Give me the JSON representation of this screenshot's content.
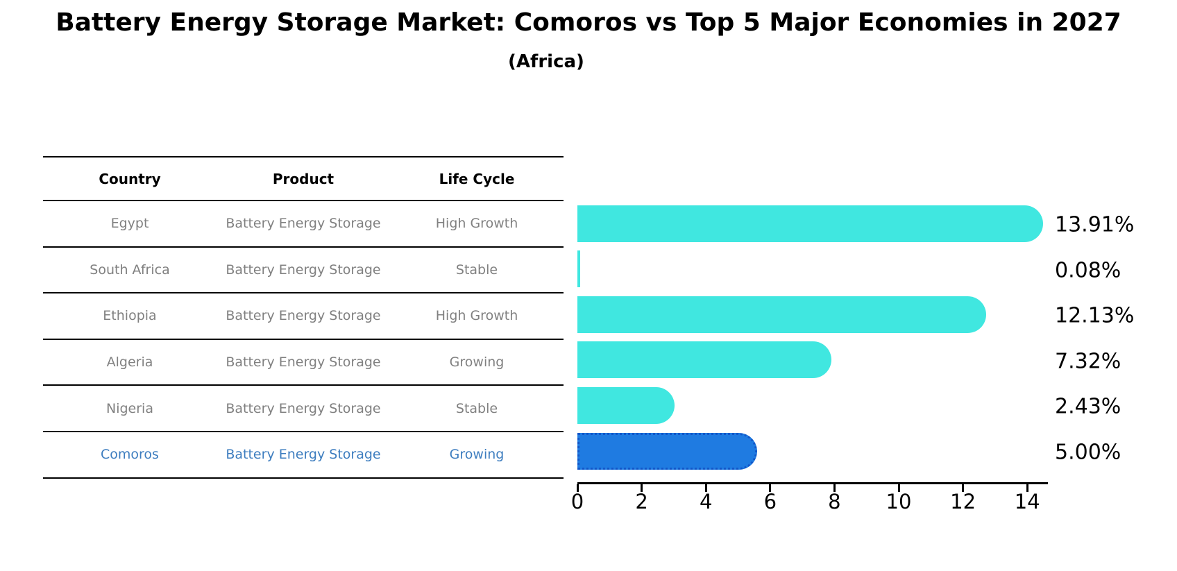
{
  "title": "Battery Energy Storage Market: Comoros vs Top 5 Major Economies in 2027",
  "subtitle": "(Africa)",
  "table": {
    "headers": [
      "Country",
      "Product",
      "Life Cycle"
    ],
    "rows": [
      {
        "country": "Egypt",
        "product": "Battery Energy Storage",
        "life_cycle": "High Growth",
        "highlight": false
      },
      {
        "country": "South Africa",
        "product": "Battery Energy Storage",
        "life_cycle": "Stable",
        "highlight": false
      },
      {
        "country": "Ethiopia",
        "product": "Battery Energy Storage",
        "life_cycle": "High Growth",
        "highlight": false
      },
      {
        "country": "Algeria",
        "product": "Battery Energy Storage",
        "life_cycle": "Growing",
        "highlight": false
      },
      {
        "country": "Nigeria",
        "product": "Battery Energy Storage",
        "life_cycle": "Stable",
        "highlight": false
      },
      {
        "country": "Comoros",
        "product": "Battery Energy Storage",
        "life_cycle": "Growing",
        "highlight": true
      }
    ]
  },
  "chart_data": {
    "type": "bar",
    "orientation": "horizontal",
    "title": "Battery Energy Storage Market: Comoros vs Top 5 Major Economies in 2027",
    "subtitle": "(Africa)",
    "categories": [
      "Egypt",
      "South Africa",
      "Ethiopia",
      "Algeria",
      "Nigeria",
      "Comoros"
    ],
    "values": [
      13.91,
      0.08,
      12.13,
      7.32,
      2.43,
      5.0
    ],
    "value_labels": [
      "13.91%",
      "0.08%",
      "12.13%",
      "7.32%",
      "2.43%",
      "5.00%"
    ],
    "xlabel": "",
    "ylabel": "",
    "xlim": [
      0,
      14.6
    ],
    "xticks": [
      0,
      2,
      4,
      6,
      8,
      10,
      12,
      14
    ],
    "grid": false,
    "legend": false,
    "bar_color": "#40e7e0",
    "highlight_color": "#1f7be1",
    "highlight_border_color": "#1257c9",
    "highlight_index": 5,
    "highlight_text_color": "#3d7dbf"
  }
}
